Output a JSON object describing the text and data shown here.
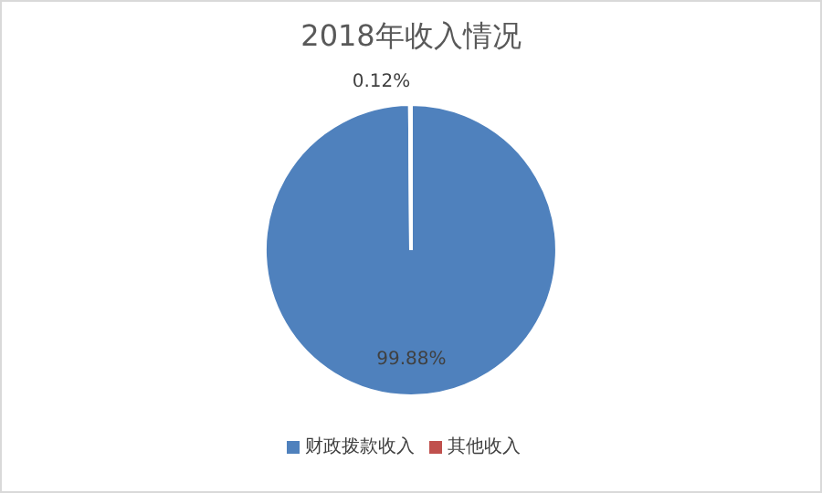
{
  "chart_data": {
    "type": "pie",
    "title": "2018年收入情况",
    "categories": [
      "财政拨款收入",
      "其他收入"
    ],
    "values": [
      99.88,
      0.12
    ],
    "colors": [
      "#4f81bd",
      "#c0504d"
    ],
    "value_labels": [
      "99.88%",
      "0.12%"
    ],
    "legend": "bottom"
  }
}
